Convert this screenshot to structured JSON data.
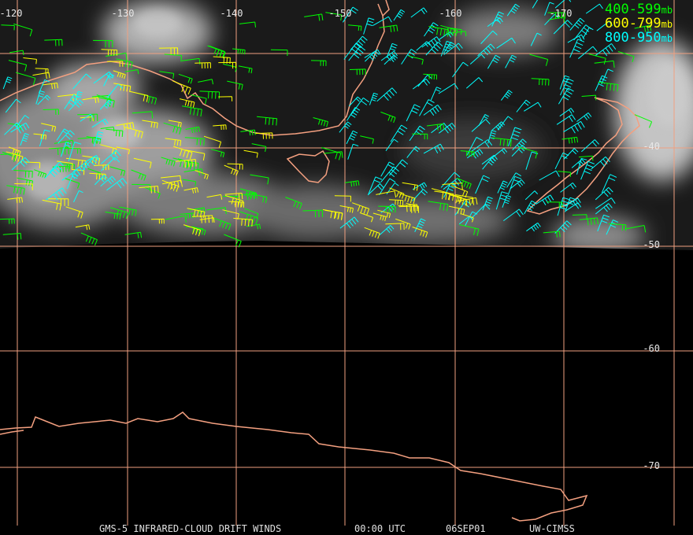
{
  "map": {
    "longitude_labels": [
      "-120",
      "-130",
      "-140",
      "-150",
      "-160",
      "-170"
    ],
    "latitude_labels": [
      "-40",
      "-50",
      "-60",
      "-70"
    ],
    "legend": [
      {
        "range": "400-599",
        "unit": "mb"
      },
      {
        "range": "600-799",
        "unit": "mb"
      },
      {
        "range": "800-950",
        "unit": "mb"
      }
    ],
    "footer": [
      "GMS-5 INFRARED-CLOUD DRIFT WINDS",
      "00:00 UTC",
      "06SEP01",
      "UW-CIMSS"
    ]
  }
}
